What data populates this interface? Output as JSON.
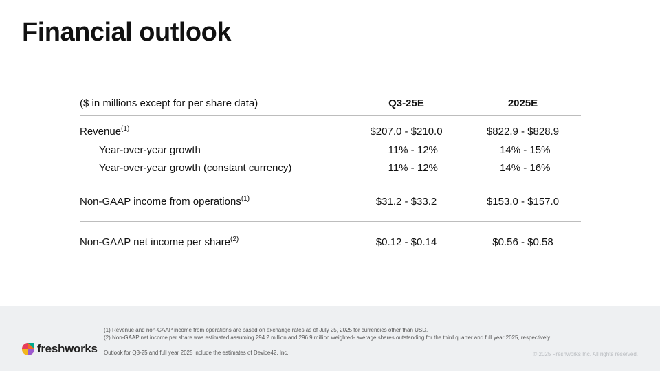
{
  "title": "Financial outlook",
  "table": {
    "header": {
      "label": "($ in millions except for per share data)",
      "col_q3": "Q3-25E",
      "col_fy": "2025E"
    },
    "rows": [
      {
        "label": "Revenue",
        "sup": "(1)",
        "q3": "$207.0 - $210.0",
        "fy": "$822.9 - $828.9"
      },
      {
        "label": "Year-over-year growth",
        "sup": "",
        "q3": "11% - 12%",
        "fy": "14% - 15%"
      },
      {
        "label": "Year-over-year growth (constant currency)",
        "sup": "",
        "q3": "11% - 12%",
        "fy": "14% - 16%"
      },
      {
        "label": "Non-GAAP income from operations",
        "sup": "(1)",
        "q3": "$31.2 - $33.2",
        "fy": "$153.0 - $157.0"
      },
      {
        "label": "Non-GAAP net income per share",
        "sup": "(2)",
        "q3": "$0.12 - $0.14",
        "fy": "$0.56 - $0.58"
      }
    ]
  },
  "footer": {
    "notes": [
      "(1) Revenue and non-GAAP income from operations are based on exchange rates as of July 25, 2025 for currencies other than USD.",
      "(2) Non-GAAP net income per share was estimated assuming 294.2 million and 296.9 million weighted- average shares outstanding for the third quarter and full year 2025, respectively.",
      "Outlook for Q3-25 and full year 2025 include the estimates of Device42, Inc."
    ],
    "logo_text": "freshworks",
    "logo_icon": "freshworks-logo-icon",
    "copyright": "© 2025 Freshworks Inc. All rights reserved."
  },
  "colors": {
    "footer_bg": "#eef0f2",
    "rule": "#bdbdbd",
    "text": "#111111"
  }
}
